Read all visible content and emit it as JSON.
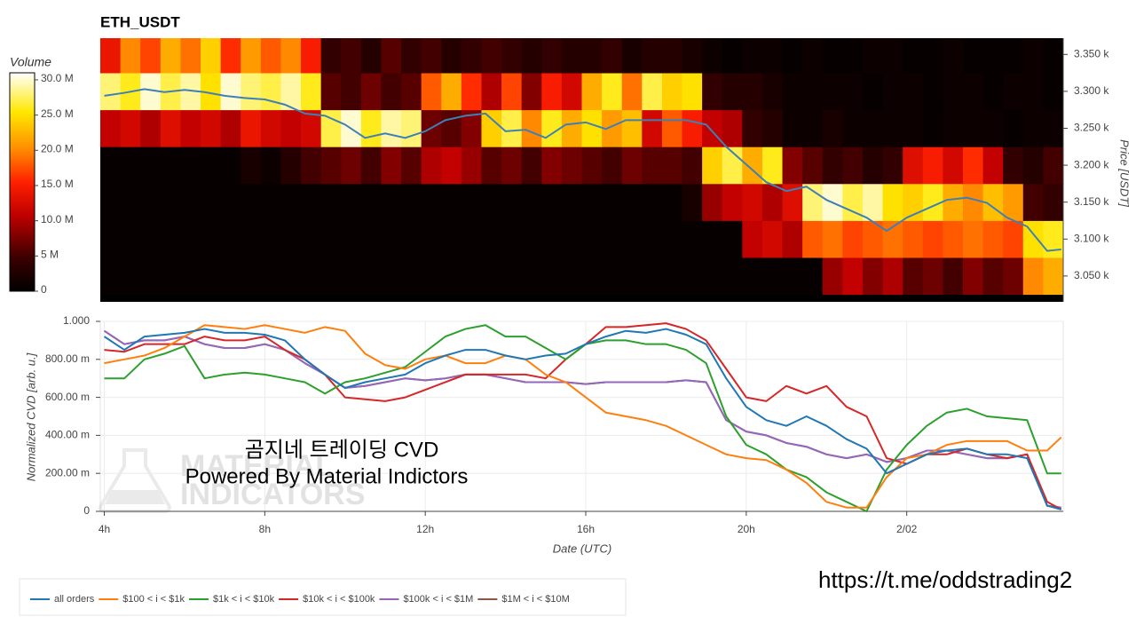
{
  "chart_data": [
    {
      "type": "heatmap",
      "title": "ETH_USDT",
      "x_bins": [
        3.9,
        4.4,
        4.9,
        5.4,
        5.9,
        6.4,
        6.9,
        7.4,
        7.9,
        8.4,
        8.9,
        9.4,
        9.9,
        10.4,
        10.9,
        11.4,
        11.9,
        12.4,
        12.9,
        13.4,
        13.9,
        14.4,
        14.9,
        15.4,
        15.9,
        16.4,
        16.9,
        17.4,
        17.9,
        18.4,
        18.9,
        19.4,
        19.9,
        20.4,
        20.9,
        21.4,
        21.9,
        22.4,
        22.9,
        23.4,
        23.9,
        24.4,
        24.9,
        25.4,
        25.9,
        26.4,
        26.9,
        27.4,
        27.9
      ],
      "y_bins": [
        3025,
        3075,
        3125,
        3175,
        3225,
        3275,
        3325,
        3375
      ],
      "z": [
        [
          0.5,
          0.5,
          0.5,
          0.5,
          0.5,
          0.5,
          0.5,
          0.5,
          0.5,
          0.5,
          0.5,
          0.5,
          0.5,
          0.5,
          0.5,
          0.5,
          0.5,
          0.5,
          0.5,
          0.5,
          0.5,
          0.5,
          0.5,
          0.5,
          0.5,
          0.5,
          0.5,
          0.5,
          0.5,
          0.5,
          0.5,
          0.5,
          0.5,
          0.5,
          0.5,
          0.5,
          9,
          11,
          8,
          10,
          6,
          7,
          5,
          8,
          6,
          7,
          20,
          22
        ],
        [
          0.5,
          0.5,
          0.5,
          0.5,
          0.5,
          0.5,
          0.5,
          0.5,
          0.5,
          0.5,
          0.5,
          0.5,
          0.5,
          0.5,
          0.5,
          0.5,
          0.5,
          0.5,
          0.5,
          0.5,
          0.5,
          0.5,
          0.5,
          0.5,
          0.5,
          0.5,
          0.5,
          0.5,
          0.5,
          0.5,
          0.5,
          0.5,
          11,
          12,
          10,
          18,
          19,
          17,
          18,
          19,
          18,
          17,
          18,
          19,
          18,
          17,
          25,
          26
        ],
        [
          0.5,
          0.5,
          0.5,
          0.5,
          0.5,
          0.5,
          0.5,
          0.5,
          0.5,
          0.5,
          0.5,
          0.5,
          0.5,
          0.5,
          0.5,
          0.5,
          0.5,
          0.5,
          0.5,
          0.5,
          0.5,
          0.5,
          0.5,
          0.5,
          0.5,
          0.5,
          0.5,
          0.5,
          0.5,
          2,
          9,
          11,
          12,
          10,
          13,
          28,
          30,
          27,
          29,
          25,
          24,
          26,
          22,
          20,
          23,
          21,
          5,
          4
        ],
        [
          0.5,
          0.5,
          0.5,
          0.5,
          0.5,
          0.5,
          0.5,
          2,
          1,
          3,
          5,
          6,
          7,
          5,
          8,
          6,
          10,
          11,
          9,
          6,
          7,
          5,
          8,
          7,
          6,
          5,
          7,
          6,
          6,
          5,
          24,
          27,
          22,
          26,
          8,
          6,
          4,
          5,
          3,
          4,
          13,
          15,
          12,
          16,
          11,
          4,
          3,
          5
        ],
        [
          11,
          12,
          10,
          13,
          11,
          12,
          10,
          14,
          12,
          11,
          12,
          27,
          30,
          26,
          29,
          28,
          7,
          6,
          8,
          24,
          27,
          20,
          26,
          22,
          25,
          21,
          23,
          12,
          18,
          15,
          11,
          10,
          4,
          3,
          1,
          1,
          2,
          1,
          1,
          1,
          1,
          0.5,
          1,
          1,
          1,
          0.5,
          1,
          1
        ],
        [
          28,
          26,
          30,
          27,
          29,
          25,
          30,
          28,
          27,
          29,
          26,
          6,
          5,
          7,
          5,
          6,
          18,
          22,
          16,
          10,
          17,
          8,
          15,
          12,
          22,
          26,
          19,
          27,
          24,
          25,
          4,
          3,
          3,
          2,
          1,
          1,
          1,
          1,
          0.5,
          1,
          1,
          0.5,
          1,
          1,
          0.5,
          1,
          1,
          0.5
        ],
        [
          14,
          20,
          17,
          22,
          19,
          24,
          16,
          21,
          18,
          20,
          15,
          4,
          5,
          3,
          6,
          4,
          5,
          3,
          4,
          5,
          4,
          3,
          4,
          3,
          3,
          4,
          2,
          3,
          3,
          2,
          1,
          0.5,
          1,
          1,
          0.5,
          1,
          0.5,
          0.5,
          1,
          1,
          0.5,
          0.5,
          1,
          0.5,
          0.5,
          0.5,
          1,
          0.5
        ]
      ],
      "colorscale": [
        [
          0,
          "#000000"
        ],
        [
          0.15,
          "#3a0000"
        ],
        [
          0.35,
          "#c00000"
        ],
        [
          0.5,
          "#ff2000"
        ],
        [
          0.65,
          "#ff8c00"
        ],
        [
          0.82,
          "#ffe800"
        ],
        [
          1,
          "#ffffff"
        ]
      ],
      "colorbar": {
        "title": "Volume",
        "lim": [
          0,
          31
        ],
        "ticks": [
          0,
          {
            "value": 5,
            "label": "5 M"
          },
          {
            "value": 10,
            "label": "10.0 M"
          },
          {
            "value": 15,
            "label": "15.0 M"
          },
          {
            "value": 20,
            "label": "20.0 M"
          },
          {
            "value": 25,
            "label": "25.0 M"
          },
          {
            "value": 30,
            "label": "30.0 M"
          }
        ]
      },
      "ylabel": "Price [USDT]",
      "xlim": [
        3.9,
        27.9
      ],
      "ylim": [
        3015,
        3372
      ],
      "yticks": [
        {
          "value": 3050,
          "label": "3.050 k"
        },
        {
          "value": 3100,
          "label": "3.100 k"
        },
        {
          "value": 3150,
          "label": "3.150 k"
        },
        {
          "value": 3200,
          "label": "3.200 k"
        },
        {
          "value": 3250,
          "label": "3.250 k"
        },
        {
          "value": 3300,
          "label": "3.300 k"
        },
        {
          "value": 3350,
          "label": "3.350 k"
        }
      ],
      "price": {
        "color": "#3d80b8",
        "x": [
          4,
          4.5,
          5,
          5.5,
          6,
          6.5,
          7,
          7.5,
          8,
          8.5,
          9,
          9.5,
          10,
          10.5,
          11,
          11.5,
          12,
          12.5,
          13,
          13.5,
          14,
          14.5,
          15,
          15.5,
          16,
          16.5,
          17,
          17.5,
          18,
          18.5,
          19,
          19.5,
          20,
          20.5,
          21,
          21.5,
          22,
          22.5,
          23,
          23.5,
          24,
          24.5,
          25,
          25.5,
          26,
          26.5,
          27,
          27.5,
          27.85
        ],
        "values": [
          3294,
          3298,
          3303,
          3299,
          3302,
          3299,
          3294,
          3291,
          3289,
          3282,
          3270,
          3267,
          3255,
          3237,
          3243,
          3237,
          3246,
          3261,
          3267,
          3270,
          3246,
          3248,
          3237,
          3255,
          3258,
          3249,
          3261,
          3261,
          3261,
          3261,
          3255,
          3225,
          3201,
          3177,
          3165,
          3171,
          3153,
          3141,
          3129,
          3111,
          3129,
          3141,
          3153,
          3156,
          3149,
          3129,
          3117,
          3084,
          3086
        ]
      }
    },
    {
      "type": "line",
      "xlabel": "Date (UTC)",
      "ylabel": "Normalized CVD [arb. u.]",
      "grid": true,
      "legend": "bottom-left",
      "xlim": [
        3.9,
        27.9
      ],
      "ylim": [
        0,
        1
      ],
      "xticks": [
        {
          "value": 4,
          "label": "4h"
        },
        {
          "value": 8,
          "label": "8h"
        },
        {
          "value": 12,
          "label": "12h"
        },
        {
          "value": 16,
          "label": "16h"
        },
        {
          "value": 20,
          "label": "20h"
        },
        {
          "value": 24,
          "label": "2/02"
        }
      ],
      "yticks": [
        0,
        {
          "value": 0.2,
          "label": "200.00 m"
        },
        {
          "value": 0.4,
          "label": "400.00 m"
        },
        {
          "value": 0.6,
          "label": "600.00 m"
        },
        {
          "value": 0.8,
          "label": "800.00 m"
        },
        {
          "value": 1,
          "label": "1.000"
        }
      ],
      "x": [
        4,
        4.5,
        5,
        5.5,
        6,
        6.5,
        7,
        7.5,
        8,
        8.5,
        9,
        9.5,
        10,
        10.5,
        11,
        11.5,
        12,
        12.5,
        13,
        13.5,
        14,
        14.5,
        15,
        15.5,
        16,
        16.5,
        17,
        17.5,
        18,
        18.5,
        19,
        19.5,
        20,
        20.5,
        21,
        21.5,
        22,
        22.5,
        23,
        23.5,
        24,
        24.5,
        25,
        25.5,
        26,
        26.5,
        27,
        27.5,
        27.85
      ],
      "series": [
        {
          "name": "all orders",
          "color": "#1f77b4",
          "values": [
            0.92,
            0.85,
            0.92,
            0.93,
            0.94,
            0.96,
            0.94,
            0.94,
            0.93,
            0.9,
            0.8,
            0.72,
            0.65,
            0.68,
            0.7,
            0.72,
            0.78,
            0.82,
            0.85,
            0.85,
            0.82,
            0.8,
            0.82,
            0.83,
            0.88,
            0.92,
            0.95,
            0.94,
            0.96,
            0.93,
            0.88,
            0.7,
            0.55,
            0.48,
            0.45,
            0.5,
            0.45,
            0.38,
            0.33,
            0.2,
            0.25,
            0.3,
            0.32,
            0.33,
            0.3,
            0.3,
            0.28,
            0.03,
            0.01
          ]
        },
        {
          "name": "$100 < i < $1k",
          "color": "#ff7f0e",
          "values": [
            0.78,
            0.8,
            0.82,
            0.86,
            0.92,
            0.98,
            0.97,
            0.96,
            0.98,
            0.96,
            0.94,
            0.97,
            0.95,
            0.83,
            0.77,
            0.75,
            0.8,
            0.82,
            0.78,
            0.78,
            0.82,
            0.8,
            0.72,
            0.68,
            0.6,
            0.52,
            0.5,
            0.48,
            0.45,
            0.4,
            0.35,
            0.3,
            0.28,
            0.27,
            0.22,
            0.15,
            0.05,
            0.02,
            0.02,
            0.18,
            0.28,
            0.3,
            0.35,
            0.37,
            0.37,
            0.37,
            0.32,
            0.32,
            0.39
          ]
        },
        {
          "name": "$1k < i < $10k",
          "color": "#2ca02c",
          "values": [
            0.7,
            0.7,
            0.8,
            0.83,
            0.87,
            0.7,
            0.72,
            0.73,
            0.72,
            0.7,
            0.68,
            0.62,
            0.68,
            0.7,
            0.73,
            0.76,
            0.84,
            0.92,
            0.96,
            0.98,
            0.92,
            0.92,
            0.86,
            0.8,
            0.88,
            0.9,
            0.9,
            0.88,
            0.88,
            0.85,
            0.78,
            0.5,
            0.35,
            0.3,
            0.22,
            0.18,
            0.1,
            0.05,
            0,
            0.22,
            0.35,
            0.45,
            0.52,
            0.54,
            0.5,
            0.49,
            0.48,
            0.2,
            0.2
          ]
        },
        {
          "name": "$10k < i < $100k",
          "color": "#d62728",
          "values": [
            0.85,
            0.84,
            0.88,
            0.88,
            0.88,
            0.92,
            0.9,
            0.9,
            0.92,
            0.85,
            0.8,
            0.72,
            0.6,
            0.59,
            0.58,
            0.6,
            0.64,
            0.68,
            0.72,
            0.72,
            0.72,
            0.72,
            0.7,
            0.8,
            0.88,
            0.97,
            0.97,
            0.98,
            0.99,
            0.96,
            0.9,
            0.75,
            0.6,
            0.58,
            0.66,
            0.62,
            0.66,
            0.55,
            0.5,
            0.28,
            0.25,
            0.3,
            0.3,
            0.33,
            0.3,
            0.28,
            0.3,
            0.05,
            0.01
          ]
        },
        {
          "name": "$100k < i < $1M",
          "color": "#9467bd",
          "values": [
            0.95,
            0.88,
            0.9,
            0.9,
            0.92,
            0.88,
            0.86,
            0.86,
            0.88,
            0.85,
            0.78,
            0.72,
            0.65,
            0.66,
            0.68,
            0.7,
            0.69,
            0.7,
            0.72,
            0.72,
            0.7,
            0.68,
            0.68,
            0.68,
            0.67,
            0.68,
            0.68,
            0.68,
            0.68,
            0.69,
            0.68,
            0.48,
            0.42,
            0.4,
            0.36,
            0.34,
            0.3,
            0.28,
            0.3,
            0.26,
            0.28,
            0.32,
            0.32,
            0.3,
            0.28,
            0.28,
            0.3,
            0.03,
            0.02
          ]
        },
        {
          "name": "$1M < i < $10M",
          "color": "#8c564b",
          "values": [
            0.95,
            0.88,
            0.9,
            0.9,
            0.92,
            0.88,
            0.86,
            0.86,
            0.88,
            0.85,
            0.78,
            0.72,
            0.65,
            0.66,
            0.68,
            0.7,
            0.69,
            0.7,
            0.72,
            0.72,
            0.7,
            0.68,
            0.68,
            0.68,
            0.67,
            0.68,
            0.68,
            0.68,
            0.68,
            0.69,
            0.68,
            0.48,
            0.42,
            0.4,
            0.36,
            0.34,
            0.3,
            0.28,
            0.3,
            0.26,
            0.28,
            0.32,
            0.32,
            0.3,
            0.28,
            0.28,
            0.3,
            0.03,
            0.02
          ]
        }
      ]
    }
  ],
  "watermark": {
    "logo": [
      "MATERIAL",
      "INDICATORS"
    ],
    "title": "곰지네 트레이딩 CVD",
    "subtitle": "Powered By Material Indictors"
  },
  "link": "https://t.me/oddstrading2"
}
